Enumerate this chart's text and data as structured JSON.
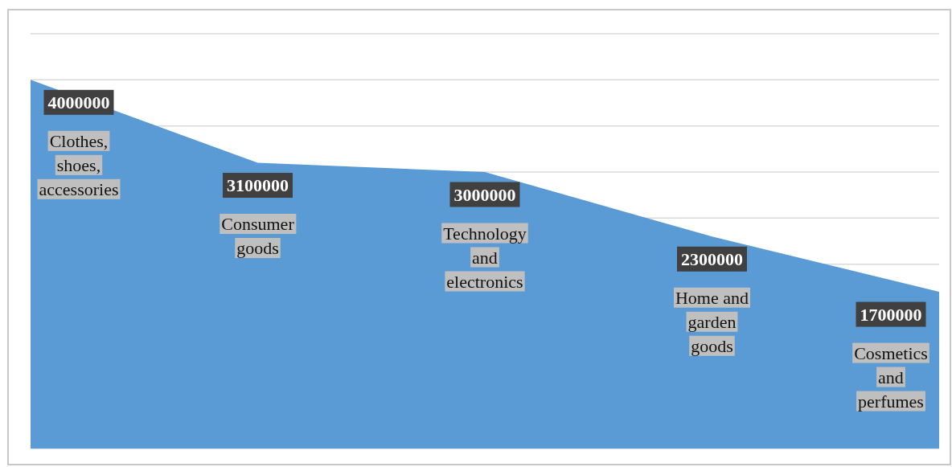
{
  "chart_data": {
    "type": "area",
    "categories": [
      "Clothes, shoes, accessories",
      "Consumer goods",
      "Technology and electronics",
      "Home and garden goods",
      "Cosmetics and perfumes"
    ],
    "values": [
      4000000,
      3100000,
      3000000,
      2300000,
      1700000
    ],
    "color": "#5b9bd5",
    "ylim": [
      0,
      4500000
    ],
    "yticks": [
      {
        "value": 0,
        "label": null
      },
      {
        "value": 2000000,
        "label": null
      },
      {
        "value": 2500000,
        "label": null
      },
      {
        "value": 3000000,
        "label": null
      },
      {
        "value": 3500000,
        "label": null
      },
      {
        "value": 4000000,
        "label": null
      },
      {
        "value": 4500000,
        "label": null
      }
    ],
    "grid": true,
    "data_labels": true
  }
}
